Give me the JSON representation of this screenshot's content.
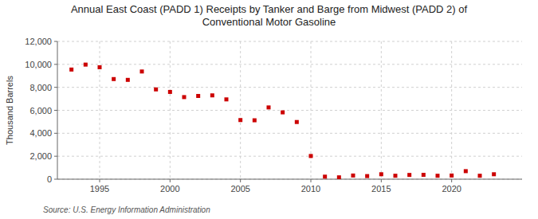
{
  "chart_data": {
    "type": "scatter",
    "title": "Annual East Coast (PADD 1) Receipts by Tanker and Barge from Midwest (PADD 2) of\nConventional Motor Gasoline",
    "ylabel": "Thousand Barrels",
    "annotations": [
      "Source: U.S. Energy Information Administration"
    ],
    "x": [
      1993,
      1994,
      1995,
      1996,
      1997,
      1998,
      1999,
      2000,
      2001,
      2002,
      2003,
      2004,
      2005,
      2006,
      2007,
      2008,
      2009,
      2010,
      2011,
      2012,
      2013,
      2014,
      2015,
      2016,
      2017,
      2018,
      2019,
      2020,
      2021,
      2022,
      2023
    ],
    "values": [
      9550,
      9980,
      9750,
      8720,
      8650,
      9380,
      7820,
      7600,
      7150,
      7250,
      7300,
      6950,
      5150,
      5130,
      6250,
      5820,
      4980,
      2020,
      220,
      160,
      320,
      270,
      430,
      300,
      370,
      380,
      300,
      320,
      700,
      300,
      430
    ],
    "color": "#cc0000",
    "marker": "square",
    "xlim": [
      1992,
      2025
    ],
    "xticks": [
      1995,
      2000,
      2005,
      2010,
      2015,
      2020
    ],
    "ylim": [
      0,
      12000
    ],
    "yticks": [
      0,
      {
        "value": 2000,
        "label": "2,000"
      },
      {
        "value": 4000,
        "label": "4,000"
      },
      {
        "value": 6000,
        "label": "6,000"
      },
      {
        "value": 8000,
        "label": "8,000"
      },
      {
        "value": 10000,
        "label": "10,000"
      },
      {
        "value": 12000,
        "label": "12,000"
      }
    ],
    "grid": true
  }
}
